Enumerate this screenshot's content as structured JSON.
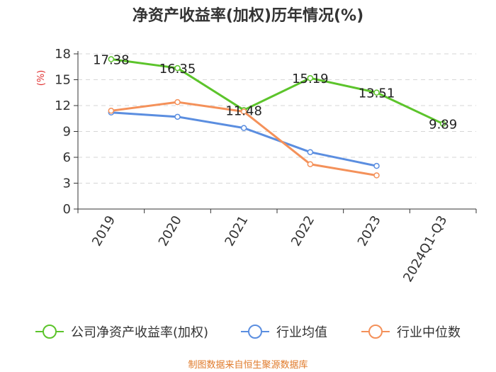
{
  "chart_data": {
    "type": "line",
    "title": "净资产收益率(加权)历年情况(%)",
    "ylabel": "(%)",
    "xlabel": "",
    "categories": [
      "2019",
      "2020",
      "2021",
      "2022",
      "2023",
      "2024Q1-Q3"
    ],
    "ylim": [
      0,
      18
    ],
    "yticks": [
      0,
      3,
      6,
      9,
      12,
      15,
      18
    ],
    "grid": "horizontal-dashed",
    "legend_position": "bottom",
    "series": [
      {
        "name": "公司净资产收益率(加权)",
        "color": "#5cc42b",
        "values": [
          17.38,
          16.35,
          11.48,
          15.19,
          13.51,
          9.89
        ],
        "labels": [
          "17.38",
          "16.35",
          "11.48",
          "15.19",
          "13.51",
          "9.89"
        ]
      },
      {
        "name": "行业均值",
        "color": "#5b8ee0",
        "values": [
          11.2,
          10.7,
          9.4,
          6.6,
          5.0,
          null
        ]
      },
      {
        "name": "行业中位数",
        "color": "#f4915a",
        "values": [
          11.4,
          12.4,
          11.3,
          5.2,
          3.9,
          null
        ]
      }
    ]
  },
  "footer": "制图数据来自恒生聚源数据库"
}
